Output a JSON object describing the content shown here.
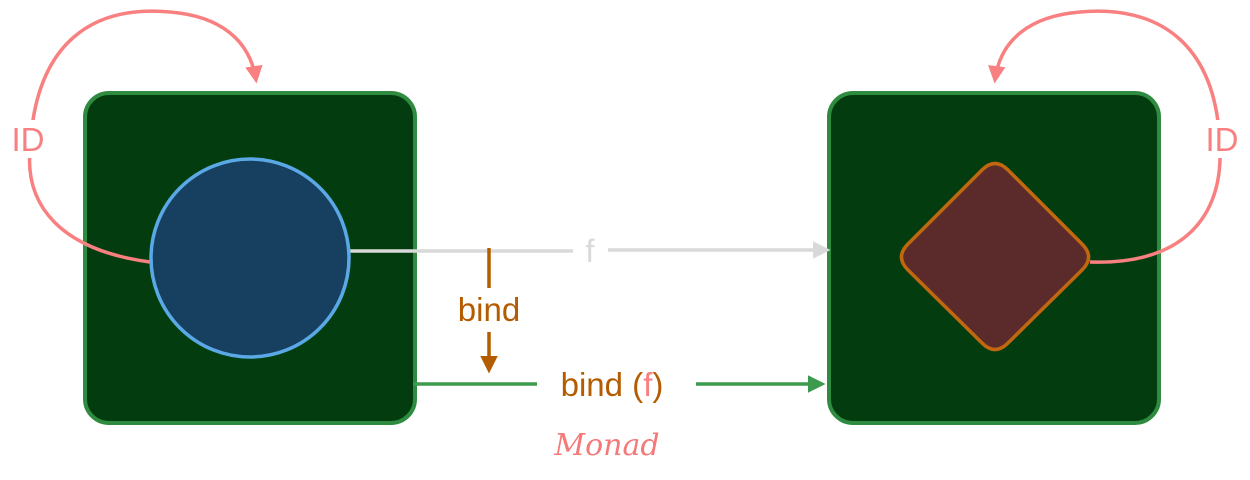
{
  "diagram": {
    "left_identity_label": "ID",
    "right_identity_label": "ID",
    "map_arrow_label": "f",
    "bind_arrow_label": "bind",
    "bound_arrow_prefix": "bind (",
    "bound_arrow_fn": "f",
    "bound_arrow_suffix": ")",
    "caption": "Monad"
  },
  "colors": {
    "background": "#ffffff",
    "box_fill": "#033d0f",
    "box_stroke": "#2e8b3f",
    "circle_fill": "#163f60",
    "circle_stroke": "#5aa9e6",
    "diamond_fill": "#5b2b2b",
    "diamond_stroke": "#c0670f",
    "identity_arrow": "#f98080",
    "map_arrow": "#d9d9d9",
    "bind_arrow": "#b35c00",
    "bound_arrow": "#3c9a4e",
    "caption": "#f47a7a"
  },
  "icons": {
    "source_object": "circle",
    "target_object": "diamond"
  }
}
